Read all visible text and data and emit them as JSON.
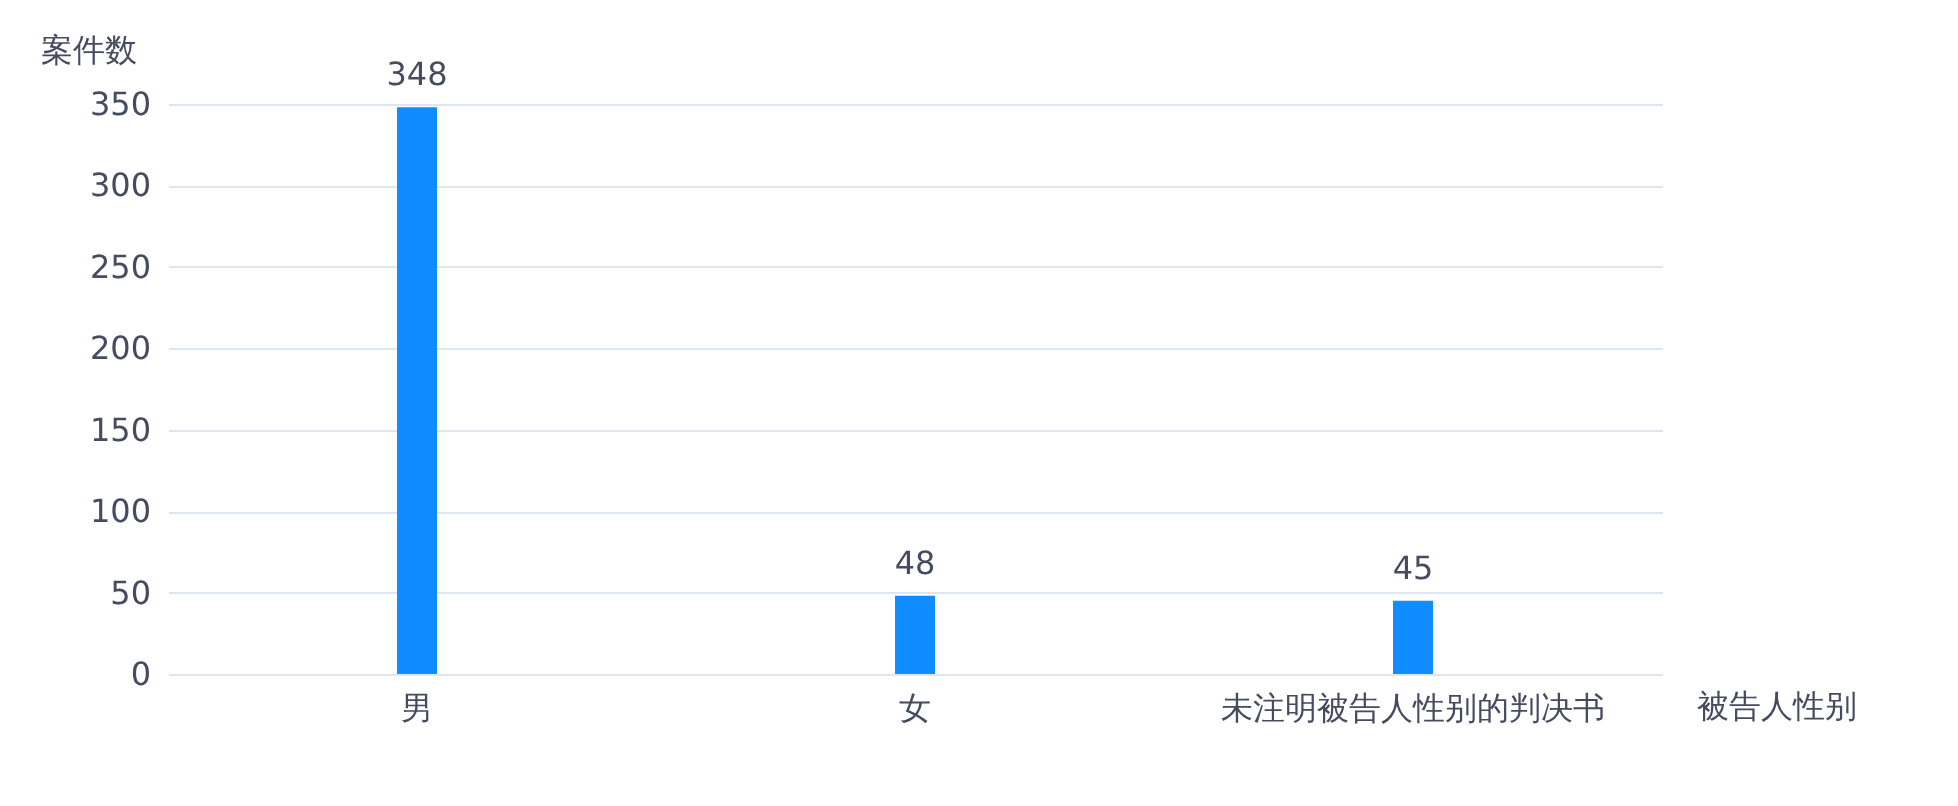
{
  "chart_data": {
    "type": "bar",
    "xlabel": "被告人性别",
    "ylabel": "案件数",
    "categories": [
      "男",
      "女",
      "未注明被告人性别的判决书"
    ],
    "values": [
      348,
      48,
      45
    ],
    "color": "#0f8cff",
    "ylim": [
      0,
      350
    ],
    "yticks": [
      0,
      50,
      100,
      150,
      200,
      250,
      300,
      350
    ],
    "grid": "y",
    "data_labels": true
  }
}
